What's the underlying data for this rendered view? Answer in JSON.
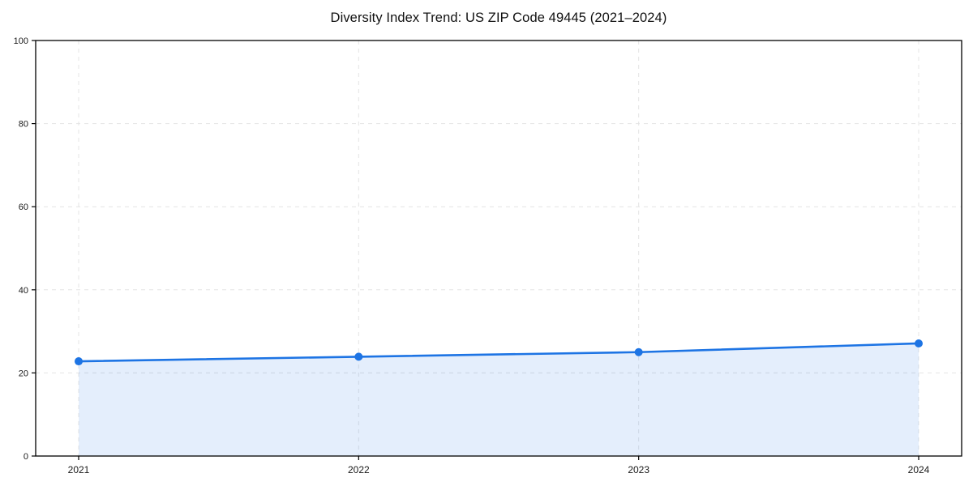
{
  "page": {
    "title": "Diversity Index Trend: US ZIP Code 49445 (2021–2024)"
  },
  "chart_data": {
    "type": "area",
    "title": "Diversity Index Trend: US ZIP Code 49445 (2021–2024)",
    "x": [
      2021,
      2022,
      2023,
      2024
    ],
    "xticklabels": [
      "2021",
      "2022",
      "2023",
      "2024"
    ],
    "series": [
      {
        "name": "Diversity Index",
        "values": [
          22.8,
          23.9,
          25.0,
          27.1
        ]
      }
    ],
    "xlabel": "",
    "ylabel": "",
    "ylim": [
      0,
      100
    ],
    "yticks": [
      0,
      20,
      40,
      60,
      80,
      100
    ],
    "grid": "dashed-both-axes",
    "legend": "none",
    "colors": {
      "line": "#1d74e4",
      "marker": "#1d74e4",
      "fill": "#1d74e4",
      "fill_opacity": 0.12,
      "grid": "#e4e4e4",
      "spine": "#000000",
      "background": "#ffffff",
      "text": "#1a1a1a"
    },
    "marker": "circle",
    "line_width": 2.6,
    "marker_radius": 5
  }
}
